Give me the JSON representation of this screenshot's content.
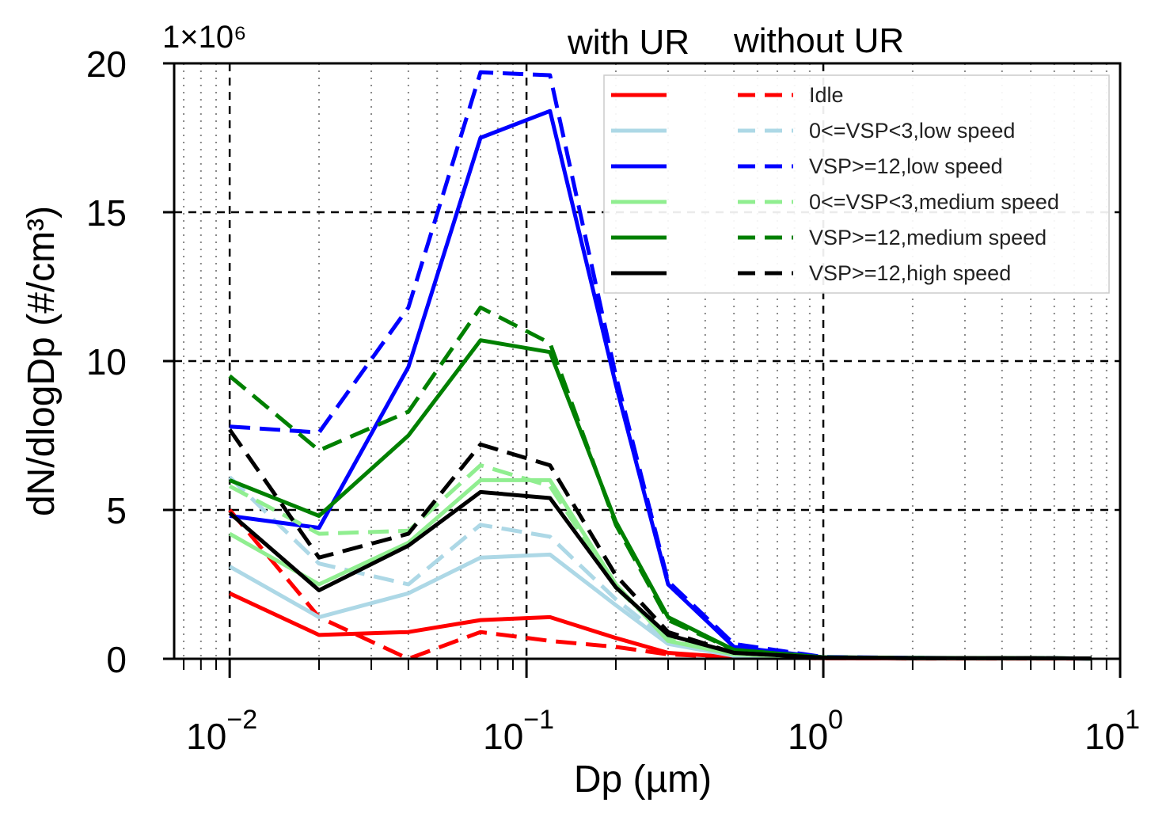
{
  "chart_data": {
    "type": "line",
    "xscale": "log",
    "xlabel": "Dp (µm)",
    "ylabel": "dN/dlogDp (#/cm³)",
    "scale_label": "1×10⁶",
    "xlim": [
      0.0065,
      10
    ],
    "ylim": [
      0,
      20
    ],
    "x_ticks": [
      {
        "value": 0.01,
        "base": "10",
        "exp": "−2"
      },
      {
        "value": 0.1,
        "base": "10",
        "exp": "−1"
      },
      {
        "value": 1,
        "base": "10",
        "exp": "0"
      },
      {
        "value": 10,
        "base": "10",
        "exp": "1"
      }
    ],
    "y_ticks": [
      {
        "value": 0,
        "label": "0"
      },
      {
        "value": 5,
        "label": "5"
      },
      {
        "value": 10,
        "label": "10"
      },
      {
        "value": 15,
        "label": "15"
      },
      {
        "value": 20,
        "label": "20"
      }
    ],
    "legend_headers": [
      "with UR",
      "without UR"
    ],
    "grid": true,
    "x": [
      0.01,
      0.02,
      0.04,
      0.07,
      0.12,
      0.2,
      0.3,
      0.5,
      1.0,
      2.0,
      5.0,
      8.0
    ],
    "series": [
      {
        "name": "Idle",
        "group": "with UR",
        "color": "#ff0000",
        "dash": false,
        "values": [
          2.2,
          0.8,
          0.9,
          1.3,
          1.4,
          0.7,
          0.2,
          0.05,
          0.02,
          0.01,
          0.01,
          0.01
        ]
      },
      {
        "name": "Idle",
        "group": "without UR",
        "color": "#ff0000",
        "dash": true,
        "values": [
          5.0,
          1.4,
          0.0,
          0.9,
          0.6,
          0.4,
          0.15,
          0.05,
          0.02,
          0.01,
          0.01,
          0.01
        ]
      },
      {
        "name": "0<=VSP<3,low speed",
        "group": "with UR",
        "color": "#add8e6",
        "dash": false,
        "values": [
          3.1,
          1.4,
          2.2,
          3.4,
          3.5,
          1.8,
          0.5,
          0.1,
          0.03,
          0.02,
          0.02,
          0.01
        ]
      },
      {
        "name": "0<=VSP<3,low speed",
        "group": "without UR",
        "color": "#add8e6",
        "dash": true,
        "values": [
          6.1,
          3.2,
          2.5,
          4.5,
          4.1,
          2.0,
          0.6,
          0.1,
          0.03,
          0.02,
          0.02,
          0.01
        ]
      },
      {
        "name": "VSP>=12,low speed",
        "group": "with UR",
        "color": "#0000ff",
        "dash": false,
        "values": [
          4.8,
          4.4,
          9.8,
          17.5,
          18.4,
          9.2,
          2.5,
          0.4,
          0.05,
          0.03,
          0.02,
          0.01
        ]
      },
      {
        "name": "VSP>=12,low speed",
        "group": "without UR",
        "color": "#0000ff",
        "dash": true,
        "values": [
          7.8,
          7.6,
          11.8,
          19.7,
          19.6,
          9.5,
          2.6,
          0.5,
          0.06,
          0.03,
          0.02,
          0.01
        ]
      },
      {
        "name": "0<=VSP<3,medium speed",
        "group": "with UR",
        "color": "#90ee90",
        "dash": false,
        "values": [
          4.2,
          2.5,
          3.9,
          6.0,
          6.0,
          2.5,
          0.6,
          0.15,
          0.04,
          0.02,
          0.02,
          0.01
        ]
      },
      {
        "name": "0<=VSP<3,medium speed",
        "group": "without UR",
        "color": "#90ee90",
        "dash": true,
        "values": [
          5.8,
          4.2,
          4.3,
          6.5,
          5.8,
          2.4,
          0.7,
          0.15,
          0.04,
          0.02,
          0.02,
          0.01
        ]
      },
      {
        "name": "VSP>=12,medium speed",
        "group": "with UR",
        "color": "#008000",
        "dash": false,
        "values": [
          6.0,
          4.8,
          7.5,
          10.7,
          10.3,
          4.6,
          1.4,
          0.3,
          0.05,
          0.03,
          0.02,
          0.01
        ]
      },
      {
        "name": "VSP>=12,medium speed",
        "group": "without UR",
        "color": "#008000",
        "dash": true,
        "values": [
          9.5,
          7.0,
          8.3,
          11.8,
          10.6,
          4.5,
          1.3,
          0.3,
          0.05,
          0.03,
          0.02,
          0.01
        ]
      },
      {
        "name": "VSP>=12,high speed",
        "group": "with UR",
        "color": "#000000",
        "dash": false,
        "values": [
          4.9,
          2.3,
          3.8,
          5.6,
          5.4,
          2.4,
          0.8,
          0.2,
          0.04,
          0.02,
          0.02,
          0.01
        ]
      },
      {
        "name": "VSP>=12,high speed",
        "group": "without UR",
        "color": "#000000",
        "dash": true,
        "values": [
          7.7,
          3.4,
          4.2,
          7.2,
          6.5,
          2.8,
          0.9,
          0.2,
          0.04,
          0.02,
          0.02,
          0.01
        ]
      }
    ],
    "legend_entries": [
      {
        "label": "Idle",
        "color": "#ff0000"
      },
      {
        "label": "0<=VSP<3,low speed",
        "color": "#add8e6"
      },
      {
        "label": "VSP>=12,low speed",
        "color": "#0000ff"
      },
      {
        "label": "0<=VSP<3,medium speed",
        "color": "#90ee90"
      },
      {
        "label": "VSP>=12,medium speed",
        "color": "#008000"
      },
      {
        "label": "VSP>=12,high speed",
        "color": "#000000"
      }
    ]
  }
}
